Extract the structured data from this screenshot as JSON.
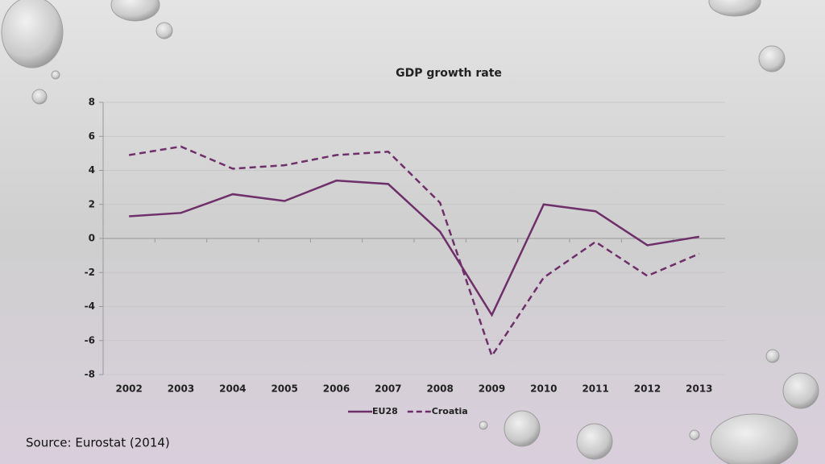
{
  "chart_data": {
    "type": "line",
    "title": "GDP growth rate",
    "categories": [
      "2002",
      "2003",
      "2004",
      "2005",
      "2006",
      "2007",
      "2008",
      "2009",
      "2010",
      "2011",
      "2012",
      "2013"
    ],
    "series": [
      {
        "name": "EU28",
        "color": "#6e2f6a",
        "dash": false,
        "values": [
          1.3,
          1.5,
          2.6,
          2.2,
          3.4,
          3.2,
          0.4,
          -4.5,
          2.0,
          1.6,
          -0.4,
          0.1
        ]
      },
      {
        "name": "Croatia",
        "color": "#6e2f6a",
        "dash": true,
        "values": [
          4.9,
          5.4,
          4.1,
          4.3,
          4.9,
          5.1,
          2.1,
          -6.9,
          -2.3,
          -0.2,
          -2.2,
          -0.9
        ]
      }
    ],
    "ylim": [
      -8,
      8
    ],
    "yticks": [
      -8,
      -6,
      -4,
      -2,
      0,
      2,
      4,
      6,
      8
    ],
    "grid": true,
    "legend": "bottom"
  },
  "source": "Source: Eurostat (2014)"
}
